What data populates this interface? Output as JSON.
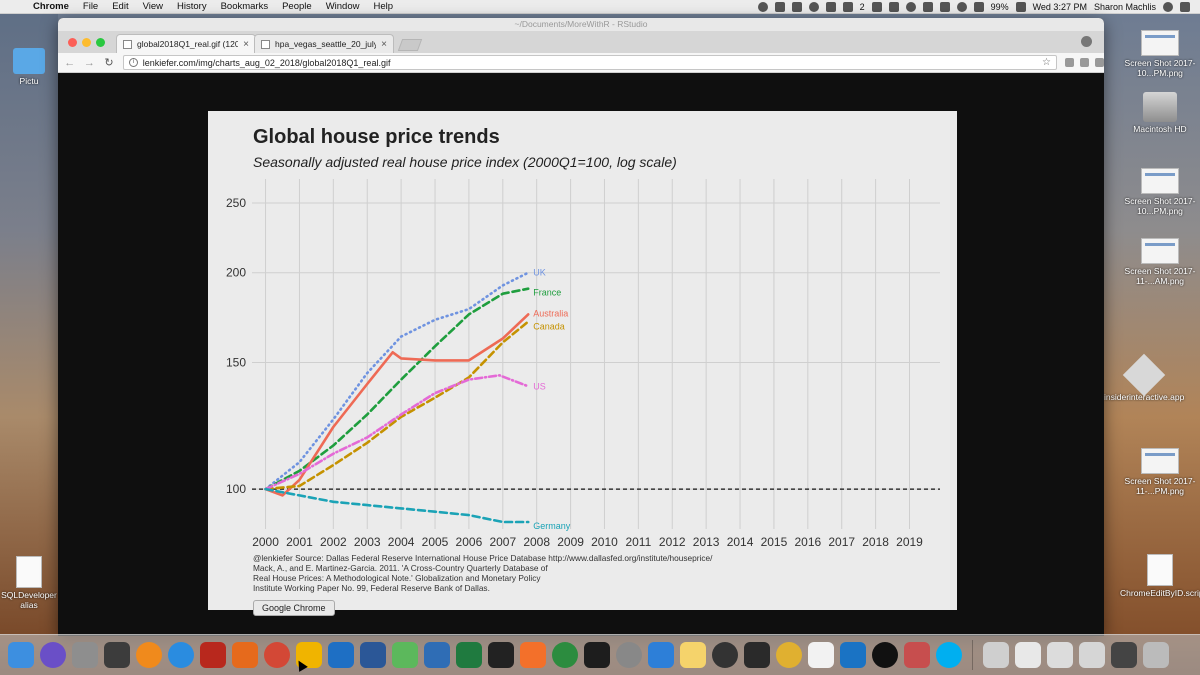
{
  "menubar": {
    "apple": "",
    "app": "Chrome",
    "menus": [
      "File",
      "Edit",
      "View",
      "History",
      "Bookmarks",
      "People",
      "Window",
      "Help"
    ],
    "mail_count": "2",
    "battery": "99%",
    "clock": "Wed 3:27 PM",
    "user": "Sharon Machlis"
  },
  "window": {
    "behind_title": "~/Documents/MoreWithR - RStudio",
    "tabs": [
      {
        "title": "global2018Q1_real.gif (1200×8",
        "close": "×",
        "active": true
      },
      {
        "title": "hpa_vegas_seattle_20_july2018",
        "close": "×",
        "active": false
      }
    ],
    "url": "lenkiefer.com/img/charts_aug_02_2018/global2018Q1_real.gif",
    "info_glyph": "i",
    "star_glyph": "☆"
  },
  "desktop": {
    "left_icons": [
      "Pictu",
      "SQLDeveloper alias"
    ],
    "right_icons": [
      "Screen Shot 2017-10...PM.png",
      "Macintosh HD",
      "Screen Shot 2017-10...PM.png",
      "Screen Shot 2017-11-...AM.png",
      "insiderinteractive.app",
      "Screen Shot 2017-11-...PM.png",
      "ChromeEditByID.script"
    ]
  },
  "tooltip": "Google Chrome",
  "dock_apps": [
    "finder-icon",
    "siri-icon",
    "launchpad-icon",
    "mission-control-icon",
    "vlc-icon",
    "safari-icon",
    "filezilla-icon",
    "firefox-icon",
    "chrome-icon",
    "wunderlist-icon",
    "outlook-icon",
    "word-icon",
    "atom-icon",
    "r-icon",
    "excel-icon",
    "terminal-icon",
    "sublime-icon",
    "time-machine-icon",
    "activity-monitor-icon",
    "system-preferences-icon",
    "app-store-icon",
    "notes-icon",
    "world-clock-icon",
    "console-icon",
    "chrome-canary-icon",
    "textedit-icon",
    "ie-icon",
    "obs-icon",
    "rpi-icon",
    "skype-icon",
    "downloads-icon",
    "documents-icon",
    "screenshots-icon",
    "folder-icon",
    "display-icon",
    "trash-icon"
  ],
  "chart_data": {
    "type": "line",
    "title": "Global house price trends",
    "subtitle": "Seasonally adjusted real house price index (2000Q1=100, log scale)",
    "caption_lines": [
      "@lenkiefer Source: Dallas Federal Reserve International House Price Database  http://www.dallasfed.org/institute/houseprice/",
      "Mack, A., and E. Martinez-Garcia. 2011. 'A Cross-Country Quarterly Database of",
      "Real House Prices: A Methodological Note.' Globalization and Monetary Policy",
      "Institute Working Paper No. 99, Federal Reserve Bank of Dallas."
    ],
    "xlabel": "",
    "ylabel": "",
    "x_ticks": [
      "2000",
      "2001",
      "2002",
      "2003",
      "2004",
      "2005",
      "2006",
      "2007",
      "2008",
      "2009",
      "2010",
      "2011",
      "2012",
      "2013",
      "2014",
      "2015",
      "2016",
      "2017",
      "2018",
      "2019"
    ],
    "y_ticks": [
      100,
      150,
      200,
      250
    ],
    "y_scale": "log",
    "xlim": [
      1999.6,
      2019.9
    ],
    "ylim": [
      88,
      270
    ],
    "grid": true,
    "reference_line": 100,
    "series": [
      {
        "name": "UK",
        "color": "#6f93e0",
        "dash": "dotted",
        "x": [
          2000,
          2001,
          2002,
          2003,
          2004,
          2005,
          2006,
          2007,
          2007.75
        ],
        "y": [
          100,
          109,
          125,
          145,
          163,
          172,
          178,
          192,
          200
        ]
      },
      {
        "name": "France",
        "color": "#1f9e3e",
        "dash": "dashed",
        "x": [
          2000,
          2001,
          2002,
          2003,
          2004,
          2005,
          2006,
          2007,
          2007.75
        ],
        "y": [
          100,
          106,
          115,
          127,
          142,
          158,
          175,
          187,
          190
        ]
      },
      {
        "name": "Australia",
        "color": "#ee6a55",
        "dash": "solid",
        "x": [
          2000,
          2000.5,
          2001,
          2002,
          2003,
          2003.75,
          2004,
          2005,
          2006,
          2007,
          2007.75
        ],
        "y": [
          100,
          98,
          103,
          122,
          140,
          155,
          152,
          151,
          151,
          162,
          175
        ]
      },
      {
        "name": "Canada",
        "color": "#c59200",
        "dash": "dashed",
        "x": [
          2000,
          2001,
          2002,
          2003,
          2004,
          2005,
          2006,
          2007,
          2007.75
        ],
        "y": [
          100,
          101,
          108,
          116,
          126,
          134,
          143,
          160,
          171
        ]
      },
      {
        "name": "US",
        "color": "#e46ad6",
        "dash": "dashdot",
        "x": [
          2000,
          2001,
          2002,
          2003,
          2004,
          2005,
          2006,
          2006.9,
          2007.75
        ],
        "y": [
          100,
          105,
          112,
          118,
          127,
          136,
          142,
          144,
          139
        ]
      },
      {
        "name": "Germany",
        "color": "#1ba3b6",
        "dash": "dashed",
        "x": [
          2000,
          2001,
          2002,
          2003,
          2004,
          2005,
          2006,
          2007,
          2007.75
        ],
        "y": [
          100,
          98,
          96,
          95,
          94,
          93,
          92,
          90,
          90
        ]
      }
    ],
    "series_label_colors": {
      "UK": "#6f93e0",
      "France": "#1f9e3e",
      "Australia": "#ee6a55",
      "Canada": "#c59200",
      "US": "#e46ad6",
      "Germany": "#1ba3b6"
    }
  }
}
